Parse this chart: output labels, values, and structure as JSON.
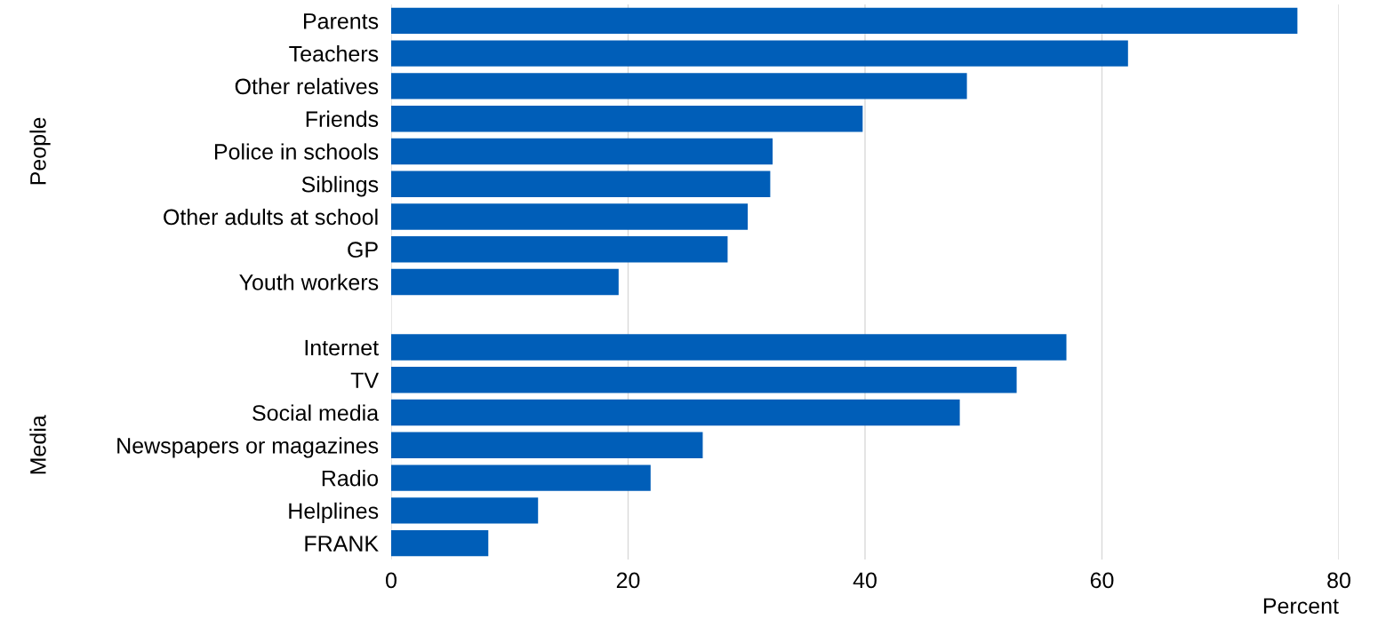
{
  "chart_data": {
    "type": "bar",
    "orientation": "horizontal",
    "xlabel": "Percent",
    "categories": [
      "Parents",
      "Teachers",
      "Other relatives",
      "Friends",
      "Police in schools",
      "Siblings",
      "Other adults at school",
      "GP",
      "Youth workers",
      null,
      "Internet",
      "TV",
      "Social media",
      "Newspapers or magazines",
      "Radio",
      "Helplines",
      "FRANK"
    ],
    "values": [
      76.5,
      62.2,
      48.6,
      39.8,
      32.2,
      32.0,
      30.1,
      28.4,
      19.2,
      null,
      57.0,
      52.8,
      48.0,
      26.3,
      21.9,
      12.4,
      8.2
    ],
    "color": "#005eb8",
    "annotations": [
      "People",
      "Media"
    ],
    "xlim": [
      0,
      80
    ],
    "xticks": [
      0,
      20,
      40,
      60,
      80
    ],
    "grid": "x"
  }
}
